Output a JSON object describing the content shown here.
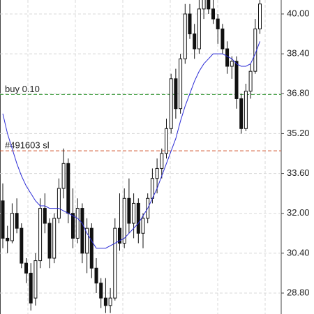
{
  "chart_data": {
    "type": "candlestick",
    "ylim": [
      27.96,
      40.56
    ],
    "yticks": [
      {
        "value": 40,
        "label": "40.00"
      },
      {
        "value": 38.4,
        "label": "38.40"
      },
      {
        "value": 36.8,
        "label": "36.80"
      },
      {
        "value": 35.2,
        "label": "35.20"
      },
      {
        "value": 33.6,
        "label": "33.60"
      },
      {
        "value": 32,
        "label": "32.00"
      },
      {
        "value": 30.4,
        "label": "30.40"
      },
      {
        "value": 28.8,
        "label": "28.80"
      }
    ],
    "grid": true,
    "open": [
      32.5,
      31.0,
      30.9,
      32.0,
      31.4,
      30.0,
      29.6,
      28.6,
      30.1,
      32.2,
      31.6,
      30.2,
      31.8,
      33.0,
      34.0,
      32.0,
      31.0,
      32.2,
      30.4,
      31.4,
      29.8,
      29.2,
      28.6,
      28.3,
      28.6,
      31.4,
      30.8,
      32.6,
      31.6,
      32.4,
      31.2,
      31.8,
      32.6,
      33.4,
      33.8,
      34.4,
      35.4,
      37.4,
      36.2,
      38.2,
      40.0,
      39.2,
      38.6,
      40.2,
      40.6,
      40.2,
      39.8,
      39.4,
      38.6,
      37.9,
      38.1,
      36.6,
      35.4,
      36.9,
      37.7,
      39.4
    ],
    "high": [
      33.2,
      31.5,
      32.4,
      32.6,
      31.6,
      30.2,
      30.0,
      30.4,
      32.6,
      32.8,
      31.8,
      32.0,
      33.4,
      34.6,
      34.2,
      33.0,
      32.6,
      32.4,
      31.8,
      31.6,
      30.2,
      29.4,
      29.4,
      29.0,
      31.8,
      32.8,
      33.0,
      33.4,
      32.8,
      32.6,
      32.0,
      32.8,
      33.8,
      34.2,
      34.6,
      35.8,
      37.6,
      37.8,
      38.4,
      40.4,
      40.4,
      39.6,
      40.6,
      40.8,
      40.9,
      40.6,
      40.0,
      39.6,
      38.9,
      38.3,
      38.3,
      36.8,
      37.2,
      38.0,
      39.8,
      40.6
    ],
    "low": [
      30.6,
      30.4,
      30.8,
      31.2,
      29.8,
      29.2,
      28.1,
      28.3,
      29.8,
      31.2,
      29.8,
      30.0,
      31.6,
      32.6,
      31.6,
      30.6,
      30.8,
      30.0,
      29.6,
      29.4,
      28.8,
      28.2,
      28.0,
      28.0,
      28.5,
      30.5,
      30.6,
      31.2,
      31.0,
      30.8,
      30.6,
      31.6,
      32.4,
      32.8,
      33.4,
      34.2,
      35.2,
      35.8,
      36.0,
      38.0,
      39.0,
      38.2,
      38.4,
      39.8,
      40.0,
      39.6,
      38.8,
      38.4,
      37.6,
      37.4,
      36.2,
      35.2,
      35.3,
      36.6,
      37.6,
      39.2
    ],
    "close": [
      31.0,
      30.9,
      32.0,
      31.4,
      30.0,
      29.6,
      28.4,
      30.1,
      32.2,
      31.6,
      30.2,
      31.8,
      33.0,
      34.0,
      32.0,
      31.0,
      32.2,
      30.4,
      31.4,
      29.8,
      29.2,
      28.6,
      28.3,
      28.6,
      31.4,
      30.8,
      32.6,
      31.6,
      32.4,
      31.2,
      31.8,
      32.6,
      33.4,
      33.8,
      34.4,
      35.4,
      37.4,
      36.2,
      38.2,
      40.0,
      39.2,
      38.6,
      40.2,
      40.6,
      40.2,
      39.8,
      39.4,
      38.6,
      37.9,
      38.1,
      36.6,
      35.4,
      36.9,
      37.7,
      39.4,
      40.4
    ],
    "series": [
      {
        "color": "#2b2bd6",
        "values": [
          36.0,
          35.2,
          34.6,
          34.0,
          33.5,
          33.1,
          32.8,
          32.5,
          32.3,
          32.3,
          32.2,
          32.2,
          32.2,
          32.1,
          32.0,
          31.9,
          31.8,
          31.6,
          31.2,
          30.9,
          30.6,
          30.6,
          30.6,
          30.7,
          30.8,
          30.9,
          31.0,
          31.2,
          31.4,
          31.6,
          31.9,
          32.2,
          32.6,
          33.0,
          33.5,
          34.0,
          34.5,
          35.0,
          35.7,
          36.3,
          36.8,
          37.3,
          37.7,
          38.0,
          38.2,
          38.4,
          38.4,
          38.4,
          38.3,
          38.2,
          38.0,
          37.9,
          37.9,
          38.0,
          38.4,
          38.9
        ]
      }
    ],
    "levels": [
      {
        "label": "buy 0.10",
        "value": 36.77,
        "color": "#3a9a3a"
      },
      {
        "label": "#491603 sl",
        "value": 34.51,
        "color": "#d0502a"
      }
    ]
  }
}
